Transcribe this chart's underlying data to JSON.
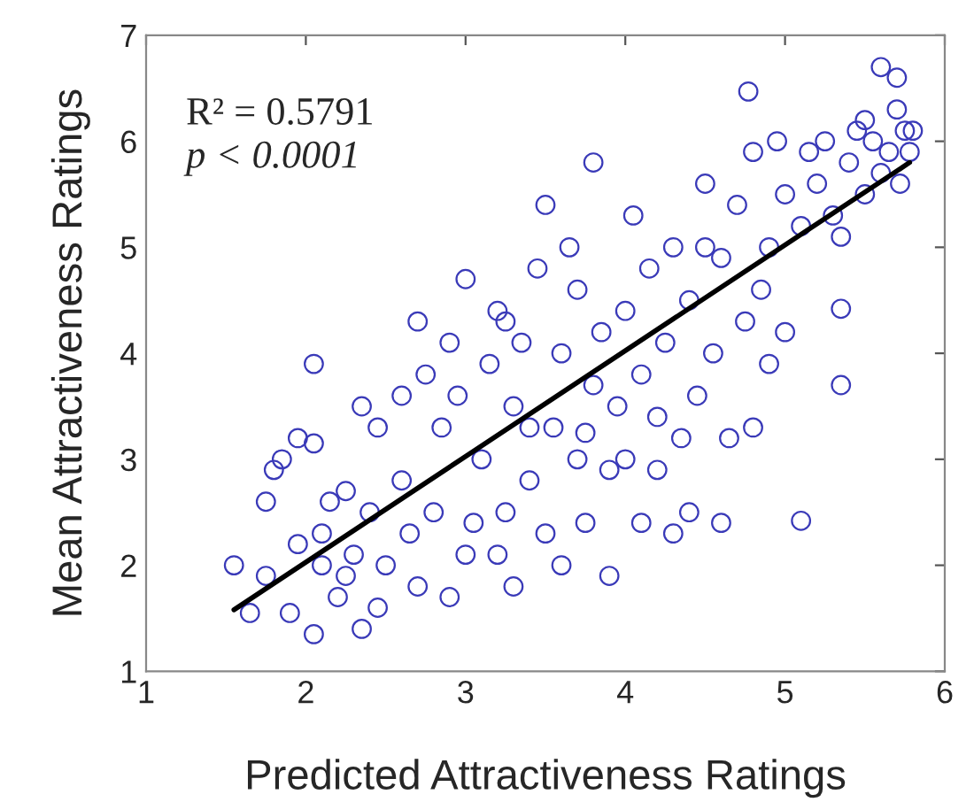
{
  "chart_data": {
    "type": "scatter",
    "xlabel": "Predicted Attractiveness Ratings",
    "ylabel": "Mean Attractiveness Ratings",
    "xlim": [
      1,
      6
    ],
    "ylim": [
      1,
      7
    ],
    "xticks": [
      1,
      2,
      3,
      4,
      5,
      6
    ],
    "yticks": [
      1,
      2,
      3,
      4,
      5,
      6,
      7
    ],
    "grid": false,
    "legend": false,
    "marker": "circle",
    "annotations": [
      "R² = 0.5791",
      "p < 0.0001"
    ],
    "series": [
      {
        "color": "#3a3ab8",
        "x": [
          1.55,
          1.65,
          1.75,
          1.8,
          1.85,
          1.75,
          1.9,
          1.95,
          1.95,
          2.05,
          2.05,
          2.05,
          2.1,
          2.1,
          2.15,
          2.2,
          2.25,
          2.25,
          2.3,
          2.35,
          2.35,
          2.4,
          2.45,
          2.45,
          2.5,
          2.6,
          2.65,
          2.7,
          2.7,
          2.75,
          2.8,
          2.85,
          2.9,
          2.95,
          3.0,
          3.05,
          3.1,
          3.15,
          3.2,
          3.2,
          3.25,
          3.3,
          3.3,
          3.35,
          3.4,
          3.45,
          3.5,
          3.5,
          3.55,
          3.6,
          3.6,
          3.65,
          3.7,
          3.7,
          3.75,
          3.8,
          3.8,
          3.85,
          3.9,
          3.9,
          3.95,
          4.0,
          4.0,
          4.05,
          4.1,
          4.1,
          4.15,
          4.2,
          4.2,
          4.25,
          4.77,
          4.3,
          4.35,
          4.4,
          4.4,
          4.45,
          4.5,
          4.55,
          4.6,
          4.6,
          4.65,
          4.7,
          4.75,
          4.8,
          4.8,
          4.85,
          4.9,
          5.0,
          5.0,
          5.1,
          5.1,
          5.15,
          5.2,
          5.25,
          5.3,
          5.35,
          5.4,
          5.45,
          5.5,
          5.55,
          5.6,
          5.6,
          5.65,
          5.7,
          5.7,
          5.72,
          5.75,
          5.78,
          5.8,
          5.5,
          5.35,
          4.95,
          4.5,
          3.0,
          3.25,
          2.9,
          2.6,
          3.4,
          3.75,
          4.3,
          4.9,
          5.35
        ],
        "values": [
          2.0,
          1.55,
          2.6,
          2.9,
          3.0,
          1.9,
          1.55,
          2.2,
          3.2,
          1.35,
          3.9,
          3.15,
          2.0,
          2.3,
          2.6,
          1.7,
          2.7,
          1.9,
          2.1,
          1.4,
          3.5,
          2.5,
          1.6,
          3.3,
          2.0,
          2.8,
          2.3,
          1.8,
          4.3,
          3.8,
          2.5,
          3.3,
          1.7,
          3.6,
          2.1,
          2.4,
          3.0,
          3.9,
          2.1,
          4.4,
          2.5,
          1.8,
          3.5,
          4.1,
          2.8,
          4.8,
          2.3,
          5.4,
          3.3,
          2.0,
          4.0,
          5.0,
          3.0,
          4.6,
          2.4,
          5.8,
          3.7,
          4.2,
          2.9,
          1.9,
          3.5,
          4.4,
          3.0,
          5.3,
          3.8,
          2.4,
          4.8,
          3.4,
          2.9,
          4.1,
          6.47,
          5.0,
          3.2,
          4.5,
          2.5,
          3.6,
          5.6,
          4.0,
          2.4,
          4.9,
          3.2,
          5.4,
          4.3,
          3.3,
          5.9,
          4.6,
          5.0,
          5.5,
          4.2,
          5.2,
          2.42,
          5.9,
          5.6,
          6.0,
          5.3,
          4.42,
          5.8,
          6.1,
          5.5,
          6.0,
          6.7,
          5.7,
          5.9,
          6.6,
          6.3,
          5.6,
          6.1,
          5.9,
          6.1,
          6.2,
          5.1,
          6.0,
          5.0,
          4.7,
          4.3,
          4.1,
          3.6,
          3.3,
          3.25,
          2.3,
          3.9,
          3.7
        ]
      },
      {
        "type": "line",
        "color": "#000000",
        "marker": "none",
        "line_style": "solid",
        "x": [
          1.55,
          5.78
        ],
        "values": [
          1.58,
          5.8
        ]
      }
    ]
  }
}
